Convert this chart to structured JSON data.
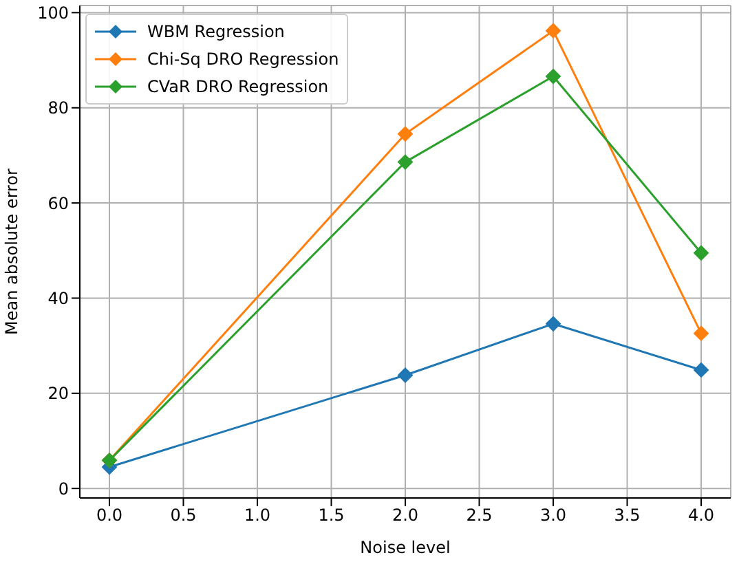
{
  "chart_data": {
    "type": "line",
    "xlabel": "Noise level",
    "ylabel": "Mean absolute error",
    "x": [
      0,
      2,
      3,
      4
    ],
    "series": [
      {
        "name": "WBM Regression",
        "color": "#1f77b4",
        "values": [
          4.5,
          23.8,
          34.6,
          24.9
        ]
      },
      {
        "name": "Chi-Sq DRO Regression",
        "color": "#ff7f0e",
        "values": [
          5.9,
          74.5,
          96.2,
          32.6
        ]
      },
      {
        "name": "CVaR DRO Regression",
        "color": "#2ca02c",
        "values": [
          5.9,
          68.6,
          86.6,
          49.5
        ]
      }
    ],
    "xlim": [
      -0.2,
      4.2
    ],
    "xticks": [
      {
        "value": 0,
        "label": "0.0"
      },
      {
        "value": 0.5,
        "label": "0.5"
      },
      {
        "value": 1,
        "label": "1.0"
      },
      {
        "value": 1.5,
        "label": "1.5"
      },
      {
        "value": 2,
        "label": "2.0"
      },
      {
        "value": 2.5,
        "label": "2.5"
      },
      {
        "value": 3,
        "label": "3.0"
      },
      {
        "value": 3.5,
        "label": "3.5"
      },
      {
        "value": 4,
        "label": "4.0"
      }
    ],
    "ylim": [
      -2,
      101.5
    ],
    "yticks": [
      0,
      20,
      40,
      60,
      80,
      100
    ],
    "grid": true,
    "legend": "top left",
    "marker": "diamond",
    "line_style": "solid"
  }
}
